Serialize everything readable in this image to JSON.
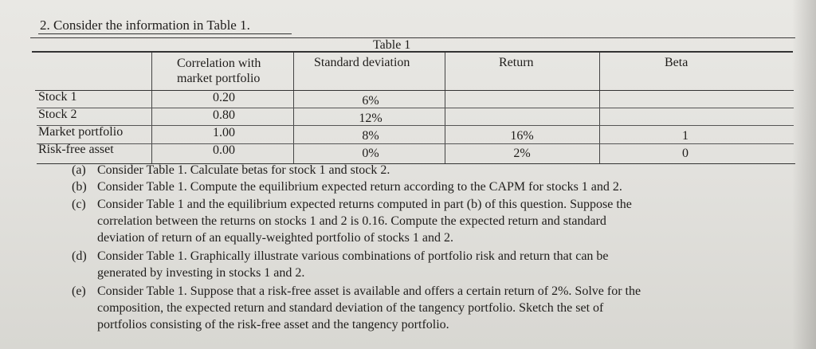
{
  "question": "2.  Consider the information in Table 1.",
  "table": {
    "caption": "Table 1",
    "headers": {
      "correlation_line1": "Correlation with",
      "correlation_line2": "market portfolio",
      "std_dev": "Standard deviation",
      "return": "Return",
      "beta": "Beta"
    },
    "rows": [
      {
        "label": "Stock 1",
        "corr": "0.20",
        "sd": "6%",
        "ret": "",
        "beta": ""
      },
      {
        "label": "Stock 2",
        "corr": "0.80",
        "sd": "12%",
        "ret": "",
        "beta": ""
      },
      {
        "label": "Market portfolio",
        "corr": "1.00",
        "sd": "8%",
        "ret": "16%",
        "beta": "1"
      },
      {
        "label": "Risk-free asset",
        "corr": "0.00",
        "sd": "0%",
        "ret": "2%",
        "beta": "0"
      }
    ]
  },
  "parts": {
    "a": {
      "letter": "(a)",
      "lines": [
        "Consider Table 1. Calculate betas for stock 1 and stock 2."
      ]
    },
    "b": {
      "letter": "(b)",
      "lines": [
        "Consider Table 1. Compute the equilibrium expected return according to the CAPM for stocks 1 and 2."
      ]
    },
    "c": {
      "letter": "(c)",
      "lines": [
        "Consider Table 1 and the equilibrium expected returns computed in part (b) of this question. Suppose the",
        "correlation between the returns on stocks 1 and 2 is 0.16. Compute the expected return and standard",
        "deviation of return of an equally-weighted portfolio of stocks 1 and 2."
      ]
    },
    "d": {
      "letter": "(d)",
      "lines": [
        "Consider Table 1. Graphically illustrate various combinations of portfolio risk and return that can be",
        "generated by investing in stocks 1 and 2."
      ]
    },
    "e": {
      "letter": "(e)",
      "lines": [
        "Consider Table 1. Suppose that a risk-free asset is available and offers a certain return of 2%. Solve for the",
        "composition, the expected return and standard deviation of the tangency portfolio. Sketch the set of",
        "portfolios consisting of the risk-free asset and the tangency portfolio."
      ]
    }
  }
}
